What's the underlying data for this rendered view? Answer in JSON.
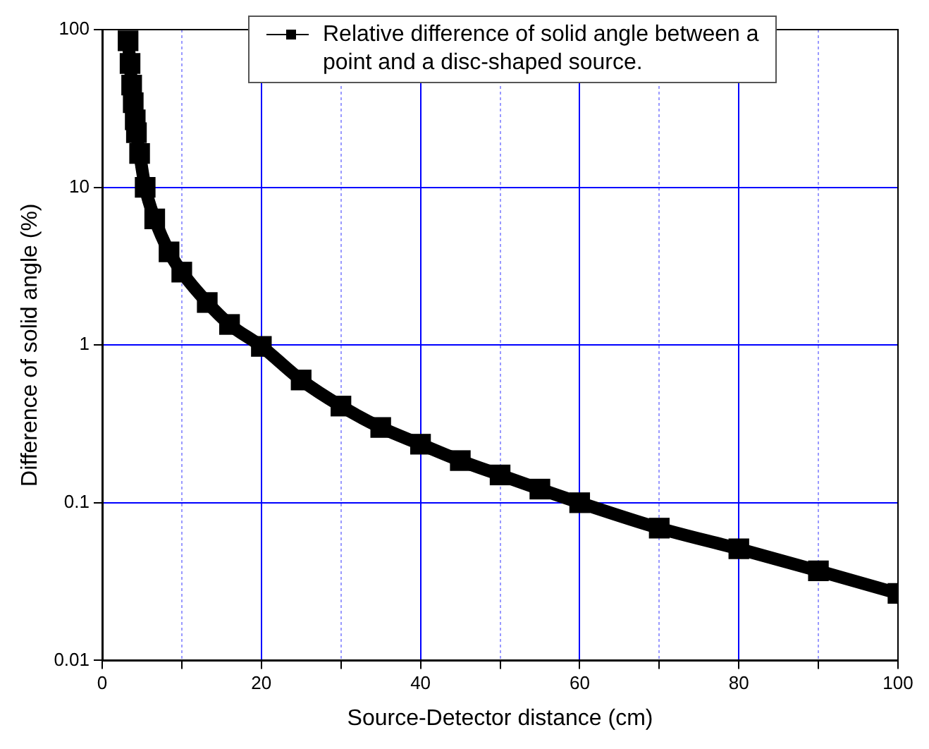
{
  "chart_data": {
    "type": "line",
    "xlabel": "Source-Detector distance (cm)",
    "ylabel": "Difference of solid angle (%)",
    "series": [
      {
        "name": "Relative difference of solid angle between a point and a disc-shaped source.",
        "color": "#000000",
        "x": [
          3.25,
          3.5,
          3.7,
          3.9,
          4.15,
          4.3,
          4.7,
          5.4,
          6.6,
          8.4,
          10,
          13.2,
          16,
          20,
          25,
          30,
          35,
          40,
          45,
          50,
          55,
          60,
          70,
          80,
          90,
          100
        ],
        "values": [
          85,
          61,
          44.5,
          34.4,
          26.8,
          22.2,
          16.4,
          10,
          6.3,
          3.9,
          2.9,
          1.86,
          1.35,
          0.98,
          0.6,
          0.41,
          0.3,
          0.235,
          0.185,
          0.15,
          0.122,
          0.1,
          0.069,
          0.051,
          0.037,
          0.0266
        ]
      }
    ],
    "xlim": [
      0,
      100
    ],
    "xticks": [
      0,
      {
        "value": 10,
        "label": null
      },
      20,
      {
        "value": 30,
        "label": null
      },
      40,
      {
        "value": 50,
        "label": null
      },
      60,
      {
        "value": 70,
        "label": null
      },
      80,
      {
        "value": 90,
        "label": null
      },
      100
    ],
    "ylim": [
      0.01,
      100
    ],
    "yticks": [
      0.01,
      0.1,
      1,
      10,
      100
    ],
    "log": true,
    "grid": true,
    "legend": "top right",
    "marker": "square",
    "line_style": "solid"
  }
}
